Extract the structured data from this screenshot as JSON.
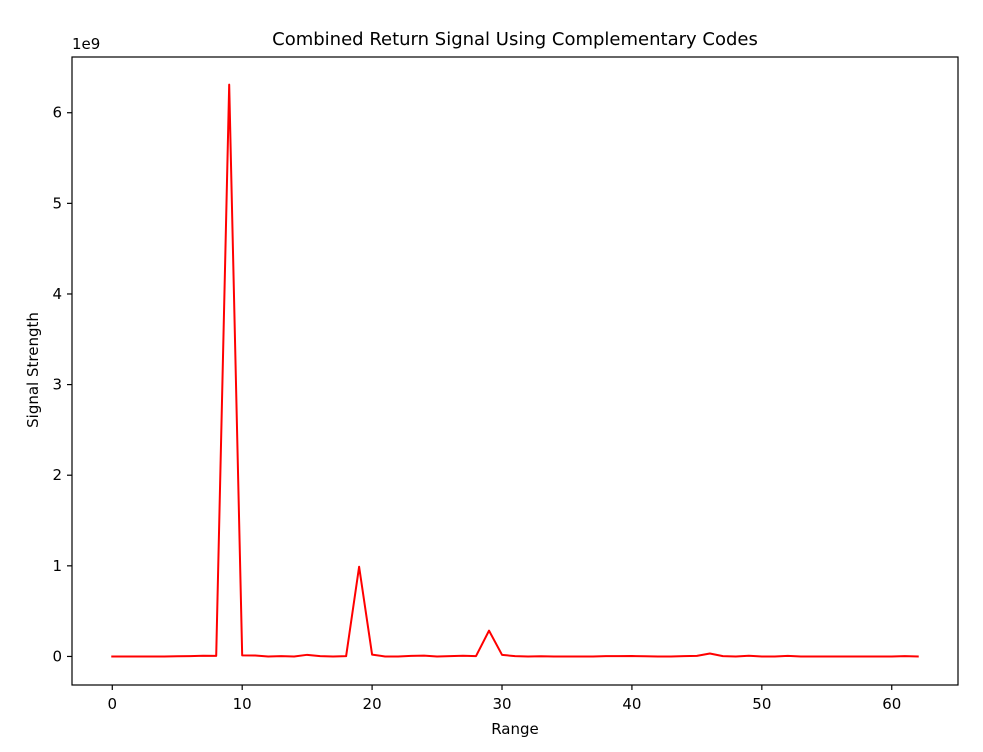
{
  "chart_data": {
    "type": "line",
    "title": "Combined Return Signal Using Complementary Codes",
    "xlabel": "Range",
    "ylabel": "Signal Strength",
    "y_offset_label": "1e9",
    "xlim": [
      -3.1,
      65.1
    ],
    "ylim": [
      -0.315,
      6.615
    ],
    "x_ticks": [
      0,
      10,
      20,
      30,
      40,
      50,
      60
    ],
    "x_tick_labels": [
      "0",
      "10",
      "20",
      "30",
      "40",
      "50",
      "60"
    ],
    "y_ticks": [
      0,
      1,
      2,
      3,
      4,
      5,
      6
    ],
    "y_tick_labels": [
      "0",
      "1",
      "2",
      "3",
      "4",
      "5",
      "6"
    ],
    "grid": false,
    "series": [
      {
        "color": "#ff0000",
        "x": [
          0,
          1,
          2,
          3,
          4,
          5,
          6,
          7,
          8,
          9,
          10,
          11,
          12,
          13,
          14,
          15,
          16,
          17,
          18,
          19,
          20,
          21,
          22,
          23,
          24,
          25,
          26,
          27,
          28,
          29,
          30,
          31,
          32,
          33,
          34,
          35,
          36,
          37,
          38,
          39,
          40,
          41,
          42,
          43,
          44,
          45,
          46,
          47,
          48,
          49,
          50,
          51,
          52,
          53,
          54,
          55,
          56,
          57,
          58,
          59,
          60,
          61,
          62
        ],
        "y": [
          0.0,
          0.0,
          0.0,
          0.0,
          0.0,
          0.002,
          0.004,
          0.008,
          0.006,
          6.31,
          0.012,
          0.01,
          0.0,
          0.003,
          0.0,
          0.018,
          0.004,
          0.0,
          0.003,
          0.99,
          0.02,
          0.0,
          0.0,
          0.006,
          0.009,
          0.0,
          0.003,
          0.008,
          0.004,
          0.285,
          0.018,
          0.003,
          0.0,
          0.002,
          0.0,
          0.0,
          0.0,
          0.0,
          0.003,
          0.004,
          0.005,
          0.002,
          0.0,
          0.0,
          0.004,
          0.006,
          0.033,
          0.004,
          0.0,
          0.008,
          0.0,
          0.0,
          0.006,
          0.0,
          0.0,
          0.0,
          0.0,
          0.0,
          0.0,
          0.0,
          0.0,
          0.003,
          0.0
        ]
      }
    ]
  }
}
